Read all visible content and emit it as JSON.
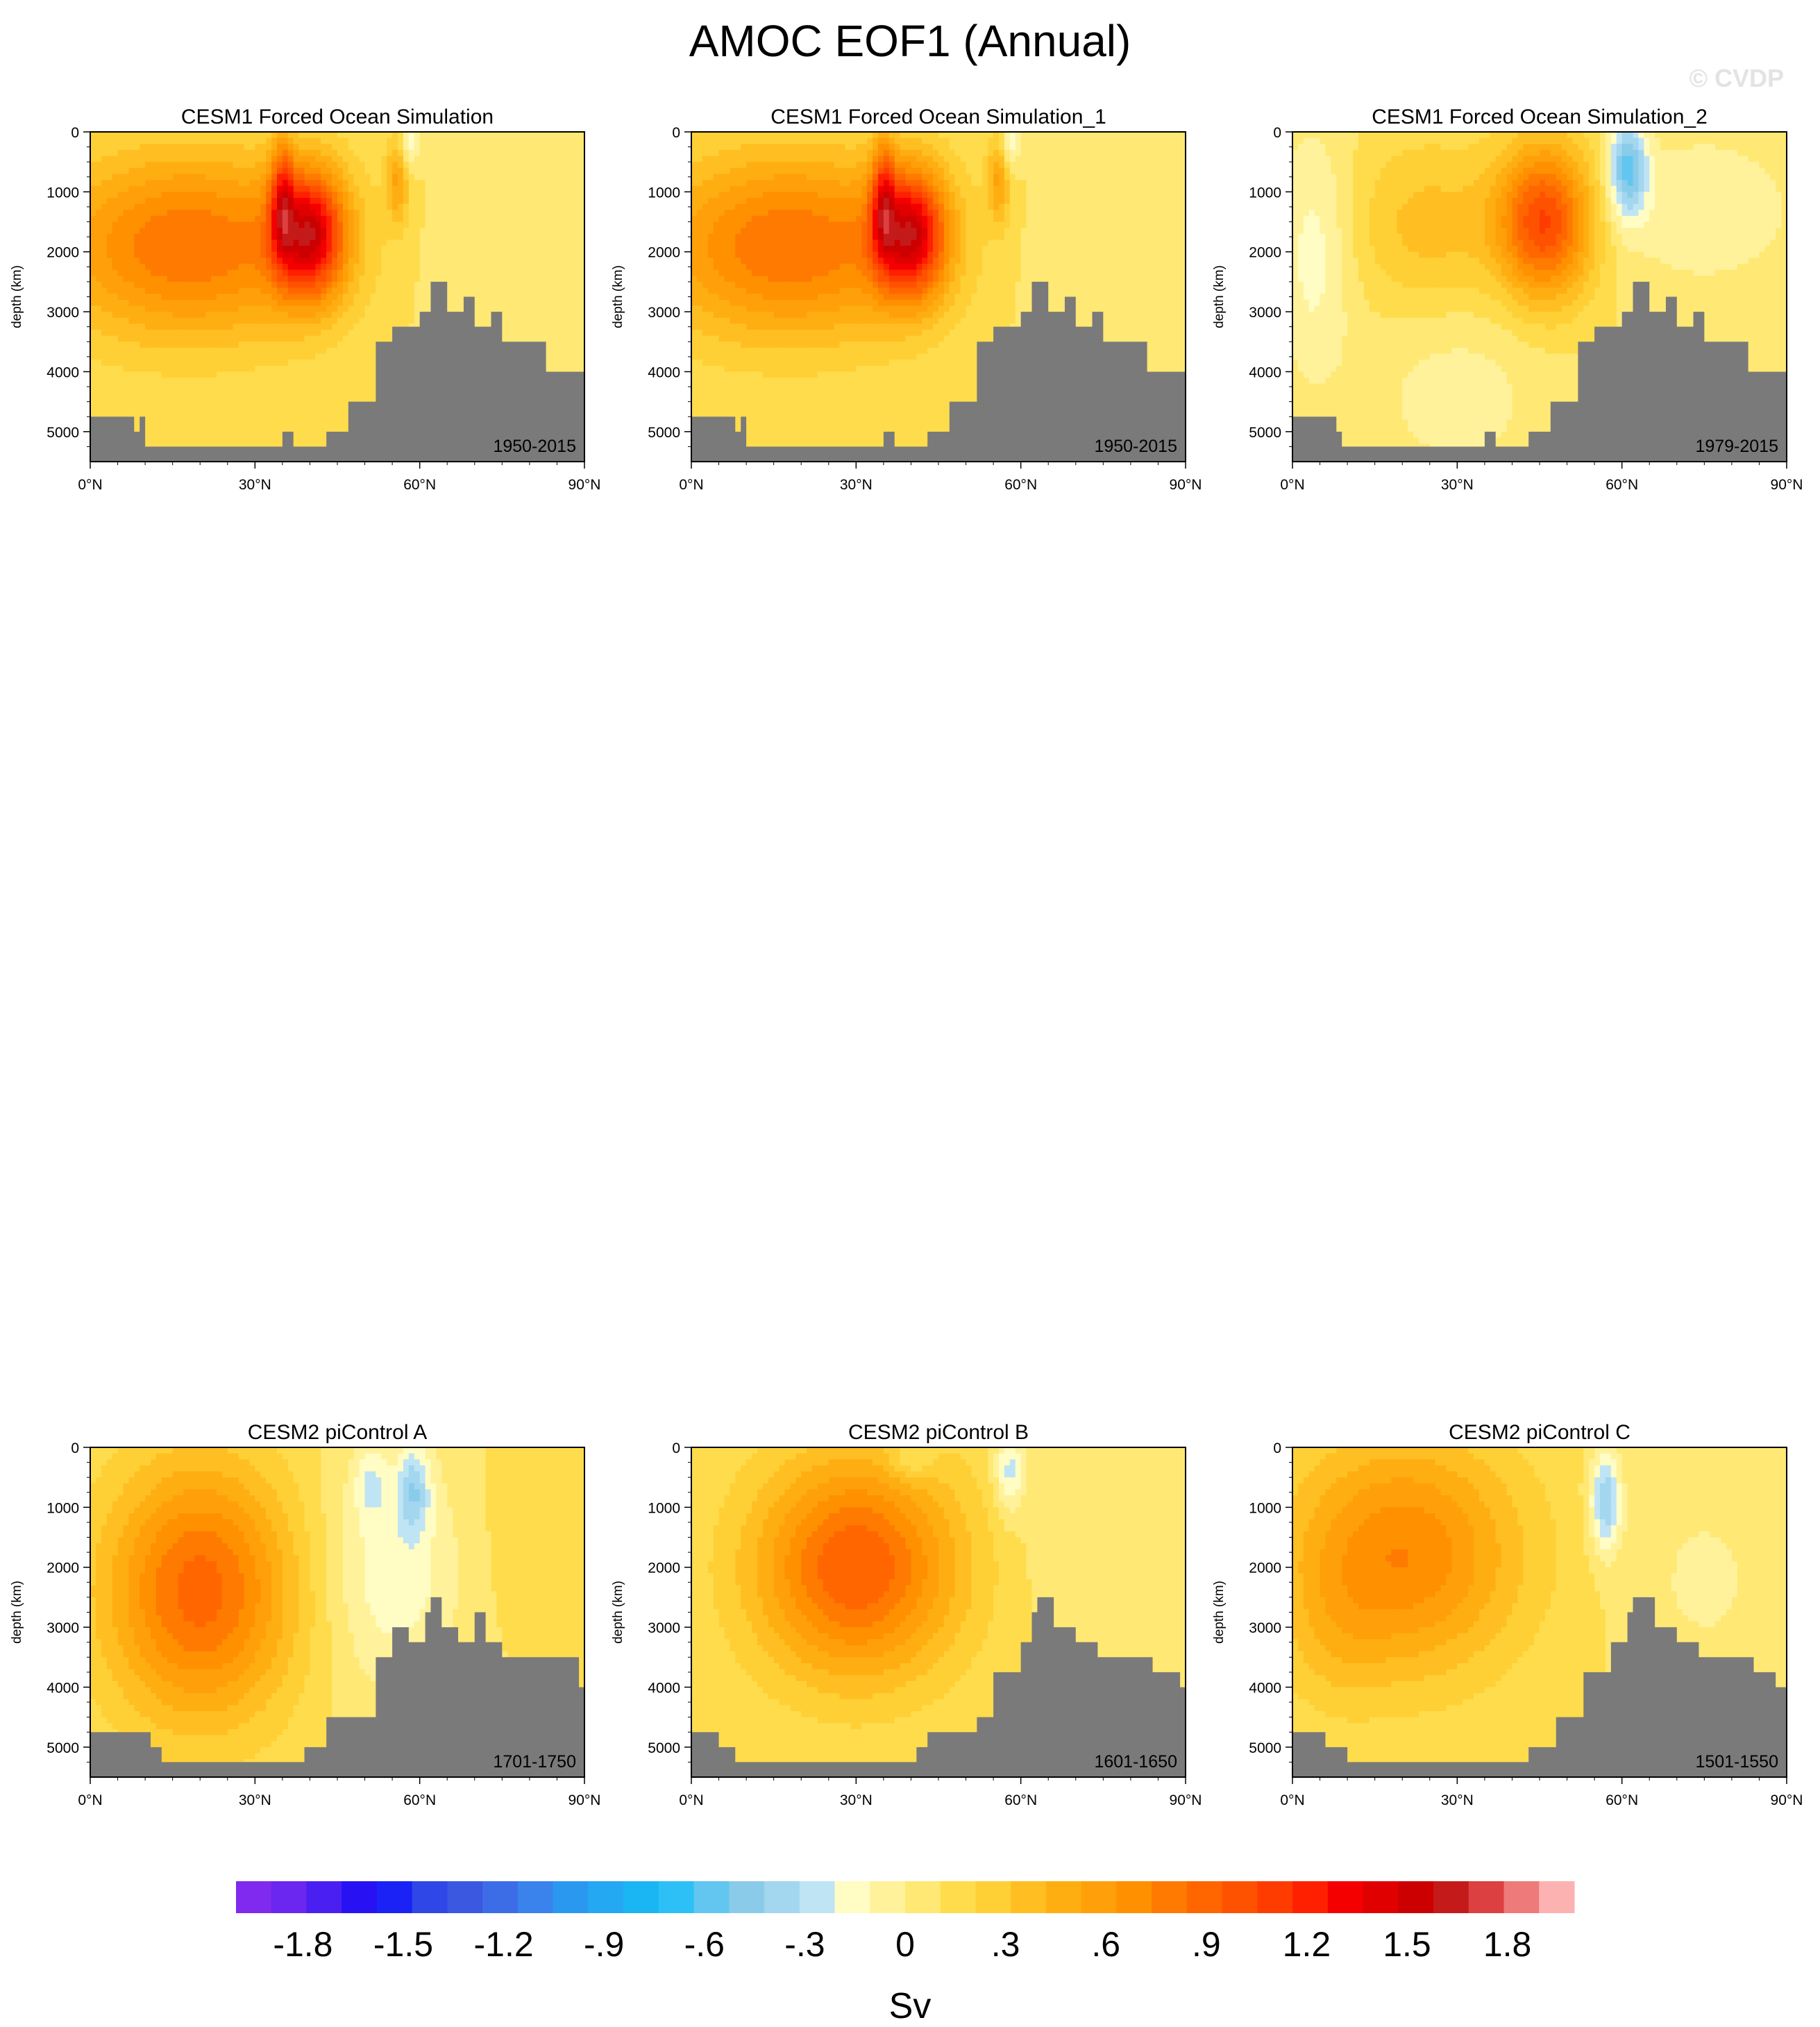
{
  "title": "AMOC EOF1 (Annual)",
  "watermark": "© CVDP",
  "colorbar": {
    "units": "Sv",
    "levels": [
      -2.0,
      -1.9,
      -1.8,
      -1.7,
      -1.6,
      -1.5,
      -1.4,
      -1.3,
      -1.2,
      -1.1,
      -1.0,
      -0.9,
      -0.8,
      -0.7,
      -0.6,
      -0.5,
      -0.4,
      -0.3,
      -0.2,
      -0.1,
      0.0,
      0.1,
      0.2,
      0.3,
      0.4,
      0.5,
      0.6,
      0.7,
      0.8,
      0.9,
      1.0,
      1.1,
      1.2,
      1.3,
      1.4,
      1.5,
      1.6,
      1.7,
      1.8,
      1.9,
      2.0
    ],
    "tick_labels": [
      "-1.8",
      "-1.5",
      "-1.2",
      "-.9",
      "-.6",
      "-.3",
      "0",
      ".3",
      ".6",
      ".9",
      "1.2",
      "1.5",
      "1.8"
    ],
    "colors": [
      "#7f2aee",
      "#6b26f0",
      "#4a1ff2",
      "#2812f4",
      "#1a22f6",
      "#2f47e6",
      "#3a58e0",
      "#3c6de6",
      "#3a82ec",
      "#2b98f0",
      "#25a8f2",
      "#1ab6f4",
      "#2cc0f6",
      "#62c6f0",
      "#8acbea",
      "#a3d6ef",
      "#bfe4f4",
      "#fffcc4",
      "#fff29a",
      "#ffe874",
      "#ffdc4c",
      "#ffd036",
      "#ffbf22",
      "#ffae12",
      "#ffa00a",
      "#ff9000",
      "#ff7a00",
      "#ff6600",
      "#ff5200",
      "#ff3c00",
      "#ff2000",
      "#f40000",
      "#e10000",
      "#cc0000",
      "#c41a1a",
      "#dd4040",
      "#ef7a7a",
      "#fdb2b2"
    ]
  },
  "chart_data": [
    {
      "type": "heatmap",
      "title": "CESM1 Forced Ocean Simulation",
      "period": "1950-2015",
      "ylabel": "depth (km)",
      "xlim": [
        0,
        90
      ],
      "ylim": [
        5500,
        0
      ],
      "x_ticks": [
        "0°N",
        "30°N",
        "60°N",
        "90°N"
      ],
      "y_ticks": [
        "0",
        "1000",
        "2000",
        "3000",
        "4000",
        "5000"
      ],
      "blobs": [
        {
          "x": 18,
          "y": 1900,
          "sx": 18,
          "sy": 1100,
          "a": 0.7
        },
        {
          "x": 40,
          "y": 1700,
          "sx": 4.5,
          "sy": 750,
          "a": 1.1
        },
        {
          "x": 35,
          "y": 1100,
          "sx": 1.5,
          "sy": 700,
          "a": 0.6
        },
        {
          "x": 56,
          "y": 800,
          "sx": 1.5,
          "sy": 500,
          "a": 0.4
        },
        {
          "x": 58,
          "y": 200,
          "sx": 1.2,
          "sy": 350,
          "a": -0.3
        },
        {
          "x": 75,
          "y": 2200,
          "sx": 12,
          "sy": 1200,
          "a": -0.1
        }
      ],
      "bathymetry": [
        [
          0,
          4750
        ],
        [
          7,
          4750
        ],
        [
          8,
          5000
        ],
        [
          9,
          4750
        ],
        [
          10,
          5250
        ],
        [
          34,
          5250
        ],
        [
          35,
          5000
        ],
        [
          37,
          5250
        ],
        [
          43,
          5000
        ],
        [
          47,
          4500
        ],
        [
          52,
          3500
        ],
        [
          55,
          3250
        ],
        [
          60,
          3000
        ],
        [
          62,
          2500
        ],
        [
          65,
          3000
        ],
        [
          68,
          2750
        ],
        [
          70,
          3250
        ],
        [
          73,
          3000
        ],
        [
          75,
          3500
        ],
        [
          80,
          3500
        ],
        [
          83,
          4000
        ],
        [
          90,
          4000
        ]
      ]
    },
    {
      "type": "heatmap",
      "title": "CESM1 Forced Ocean Simulation_1",
      "period": "1950-2015",
      "ylabel": "depth (km)",
      "xlim": [
        0,
        90
      ],
      "ylim": [
        5500,
        0
      ],
      "x_ticks": [
        "0°N",
        "30°N",
        "60°N",
        "90°N"
      ],
      "y_ticks": [
        "0",
        "1000",
        "2000",
        "3000",
        "4000",
        "5000"
      ],
      "blobs": [
        {
          "x": 18,
          "y": 1900,
          "sx": 18,
          "sy": 1100,
          "a": 0.7
        },
        {
          "x": 40,
          "y": 1700,
          "sx": 4.5,
          "sy": 750,
          "a": 1.1
        },
        {
          "x": 35,
          "y": 1100,
          "sx": 1.5,
          "sy": 700,
          "a": 0.6
        },
        {
          "x": 56,
          "y": 800,
          "sx": 1.5,
          "sy": 500,
          "a": 0.4
        },
        {
          "x": 58,
          "y": 200,
          "sx": 1.2,
          "sy": 350,
          "a": -0.3
        },
        {
          "x": 75,
          "y": 2200,
          "sx": 12,
          "sy": 1200,
          "a": -0.1
        }
      ],
      "bathymetry": [
        [
          0,
          4750
        ],
        [
          7,
          4750
        ],
        [
          8,
          5000
        ],
        [
          9,
          4750
        ],
        [
          10,
          5250
        ],
        [
          34,
          5250
        ],
        [
          35,
          5000
        ],
        [
          37,
          5250
        ],
        [
          43,
          5000
        ],
        [
          47,
          4500
        ],
        [
          52,
          3500
        ],
        [
          55,
          3250
        ],
        [
          60,
          3000
        ],
        [
          62,
          2500
        ],
        [
          65,
          3000
        ],
        [
          68,
          2750
        ],
        [
          70,
          3250
        ],
        [
          73,
          3000
        ],
        [
          75,
          3500
        ],
        [
          80,
          3500
        ],
        [
          83,
          4000
        ],
        [
          90,
          4000
        ]
      ]
    },
    {
      "type": "heatmap",
      "title": "CESM1 Forced Ocean Simulation_2",
      "period": "1979-2015",
      "ylabel": "depth (km)",
      "xlim": [
        0,
        90
      ],
      "ylim": [
        5500,
        0
      ],
      "x_ticks": [
        "0°N",
        "30°N",
        "60°N",
        "90°N"
      ],
      "y_ticks": [
        "0",
        "1000",
        "2000",
        "3000",
        "4000",
        "5000"
      ],
      "blobs": [
        {
          "x": 46,
          "y": 1500,
          "sx": 6,
          "sy": 900,
          "a": 0.9
        },
        {
          "x": 25,
          "y": 1600,
          "sx": 10,
          "sy": 1000,
          "a": 0.25
        },
        {
          "x": 61,
          "y": 600,
          "sx": 2.5,
          "sy": 600,
          "a": -0.6
        },
        {
          "x": 75,
          "y": 1300,
          "sx": 12,
          "sy": 900,
          "a": -0.2
        },
        {
          "x": 4,
          "y": 2000,
          "sx": 5,
          "sy": 1500,
          "a": -0.25
        },
        {
          "x": 30,
          "y": 4300,
          "sx": 12,
          "sy": 1200,
          "a": -0.15
        }
      ],
      "bathymetry": [
        [
          0,
          4750
        ],
        [
          7,
          4750
        ],
        [
          8,
          5000
        ],
        [
          9,
          5250
        ],
        [
          34,
          5250
        ],
        [
          35,
          5000
        ],
        [
          37,
          5250
        ],
        [
          43,
          5000
        ],
        [
          47,
          4500
        ],
        [
          52,
          3500
        ],
        [
          55,
          3250
        ],
        [
          60,
          3000
        ],
        [
          62,
          2500
        ],
        [
          65,
          3000
        ],
        [
          68,
          2750
        ],
        [
          70,
          3250
        ],
        [
          73,
          3000
        ],
        [
          75,
          3500
        ],
        [
          80,
          3500
        ],
        [
          83,
          4000
        ],
        [
          90,
          4000
        ]
      ]
    },
    {
      "type": "heatmap",
      "title": "CESM2 piControl A",
      "period": "1701-1750",
      "ylabel": "depth (km)",
      "xlim": [
        0,
        90
      ],
      "ylim": [
        5500,
        0
      ],
      "x_ticks": [
        "0°N",
        "30°N",
        "60°N",
        "90°N"
      ],
      "y_ticks": [
        "0",
        "1000",
        "2000",
        "3000",
        "4000",
        "5000"
      ],
      "blobs": [
        {
          "x": 20,
          "y": 2400,
          "sx": 12,
          "sy": 1500,
          "a": 0.75
        },
        {
          "x": 55,
          "y": 2000,
          "sx": 9,
          "sy": 1500,
          "a": -0.28
        },
        {
          "x": 59,
          "y": 700,
          "sx": 2,
          "sy": 500,
          "a": -0.35
        },
        {
          "x": 51,
          "y": 600,
          "sx": 2,
          "sy": 400,
          "a": -0.2
        },
        {
          "x": 78,
          "y": 1500,
          "sx": 8,
          "sy": 1200,
          "a": 0.05
        }
      ],
      "bathymetry": [
        [
          0,
          4750
        ],
        [
          10,
          4750
        ],
        [
          11,
          5000
        ],
        [
          13,
          5250
        ],
        [
          38,
          5250
        ],
        [
          39,
          5000
        ],
        [
          43,
          4500
        ],
        [
          49,
          4500
        ],
        [
          52,
          3500
        ],
        [
          55,
          3000
        ],
        [
          58,
          3250
        ],
        [
          61,
          2750
        ],
        [
          62,
          2500
        ],
        [
          64,
          3000
        ],
        [
          67,
          3250
        ],
        [
          70,
          2750
        ],
        [
          72,
          3250
        ],
        [
          75,
          3500
        ],
        [
          88,
          3500
        ],
        [
          89,
          4000
        ],
        [
          90,
          4000
        ]
      ]
    },
    {
      "type": "heatmap",
      "title": "CESM2 piControl B",
      "period": "1601-1650",
      "ylabel": "depth (km)",
      "xlim": [
        0,
        90
      ],
      "ylim": [
        5500,
        0
      ],
      "x_ticks": [
        "0°N",
        "30°N",
        "60°N",
        "90°N"
      ],
      "y_ticks": [
        "0",
        "1000",
        "2000",
        "3000",
        "4000",
        "5000"
      ],
      "blobs": [
        {
          "x": 30,
          "y": 2000,
          "sx": 13,
          "sy": 1300,
          "a": 0.8
        },
        {
          "x": 58,
          "y": 400,
          "sx": 2,
          "sy": 500,
          "a": -0.35
        },
        {
          "x": 40,
          "y": 200,
          "sx": 3,
          "sy": 250,
          "a": -0.2
        },
        {
          "x": 70,
          "y": 1800,
          "sx": 8,
          "sy": 1000,
          "a": -0.08
        }
      ],
      "bathymetry": [
        [
          0,
          4750
        ],
        [
          4,
          4750
        ],
        [
          5,
          5000
        ],
        [
          8,
          5250
        ],
        [
          40,
          5250
        ],
        [
          41,
          5000
        ],
        [
          43,
          4750
        ],
        [
          52,
          4500
        ],
        [
          55,
          3750
        ],
        [
          60,
          3250
        ],
        [
          62,
          2750
        ],
        [
          63,
          2500
        ],
        [
          66,
          3000
        ],
        [
          70,
          3250
        ],
        [
          74,
          3500
        ],
        [
          84,
          3750
        ],
        [
          89,
          4000
        ],
        [
          90,
          4000
        ]
      ]
    },
    {
      "type": "heatmap",
      "title": "CESM2 piControl C",
      "period": "1501-1550",
      "ylabel": "depth (km)",
      "xlim": [
        0,
        90
      ],
      "ylim": [
        5500,
        0
      ],
      "x_ticks": [
        "0°N",
        "30°N",
        "60°N",
        "90°N"
      ],
      "y_ticks": [
        "0",
        "1000",
        "2000",
        "3000",
        "4000",
        "5000"
      ],
      "blobs": [
        {
          "x": 20,
          "y": 1800,
          "sx": 15,
          "sy": 1400,
          "a": 0.6
        },
        {
          "x": 57,
          "y": 900,
          "sx": 2,
          "sy": 600,
          "a": -0.5
        },
        {
          "x": 75,
          "y": 2200,
          "sx": 10,
          "sy": 1300,
          "a": -0.12
        },
        {
          "x": 8,
          "y": 3200,
          "sx": 6,
          "sy": 900,
          "a": 0.1
        }
      ],
      "bathymetry": [
        [
          0,
          4750
        ],
        [
          5,
          4750
        ],
        [
          6,
          5000
        ],
        [
          10,
          5250
        ],
        [
          42,
          5250
        ],
        [
          43,
          5000
        ],
        [
          48,
          4500
        ],
        [
          53,
          3750
        ],
        [
          58,
          3250
        ],
        [
          61,
          2750
        ],
        [
          62,
          2500
        ],
        [
          66,
          3000
        ],
        [
          70,
          3250
        ],
        [
          74,
          3500
        ],
        [
          82,
          3500
        ],
        [
          84,
          3750
        ],
        [
          88,
          4000
        ],
        [
          90,
          4000
        ]
      ]
    }
  ]
}
